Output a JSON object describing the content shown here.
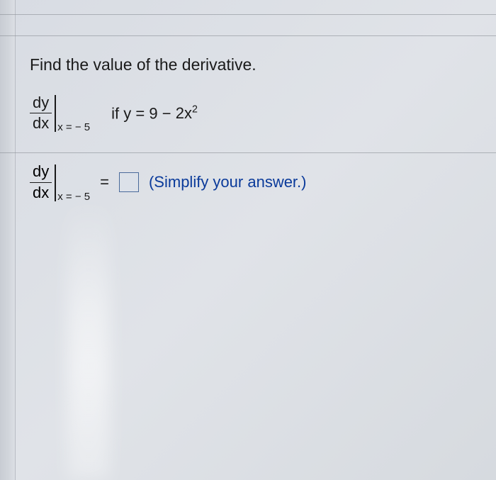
{
  "question": {
    "prompt": "Find the value of the derivative.",
    "derivative": {
      "numerator": "dy",
      "denominator": "dx"
    },
    "evaluation_point": "x = − 5",
    "condition_prefix": "if ",
    "function_lhs": "y",
    "function_rhs_a": "9",
    "function_rhs_b": "2x",
    "function_rhs_exp": "2",
    "equals": "=",
    "minus": "−"
  },
  "answer": {
    "derivative": {
      "numerator": "dy",
      "denominator": "dx"
    },
    "evaluation_point": "x = − 5",
    "equals": "=",
    "hint": "(Simplify your answer.)"
  },
  "style": {
    "text_color": "#1a1a1a",
    "hint_color": "#0a3a9a",
    "box_border": "#4a6a9a",
    "rule_color": "#8a8f96",
    "font_family": "Arial",
    "prompt_fontsize": 23,
    "math_fontsize": 22,
    "sub_fontsize": 15
  }
}
